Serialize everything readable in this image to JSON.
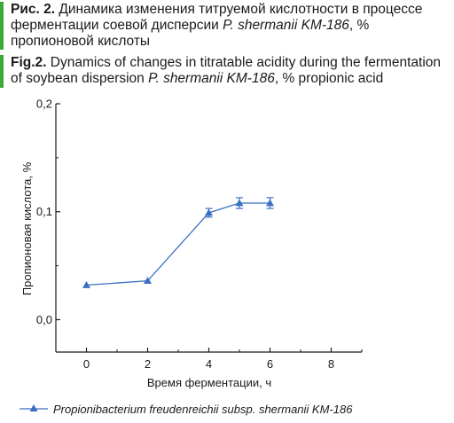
{
  "caption": {
    "ru_label": "Рис. 2.",
    "ru_text_1": " Динамика изменения титруемой кислотности в процессе ферментации соевой дисперсии ",
    "ru_strain": "P. shermanii KM-186",
    "ru_text_2": ", % пропионовой кислоты",
    "en_label": "Fig.2.",
    "en_text_1": " Dynamics of changes in titratable acidity during the fermentation of soybean dispersion ",
    "en_strain": "P. shermanii KM-186",
    "en_text_2": ", % propionic acid"
  },
  "colors": {
    "accent_bar": "#3aa935",
    "series": "#3b6fc4",
    "axis": "#1a1a1a"
  },
  "chart_data": {
    "type": "line",
    "xlabel": "Время ферментации, ч",
    "ylabel": "Пропионовая кислота, %",
    "xlim": [
      -1,
      9
    ],
    "ylim": [
      -0.03,
      0.2
    ],
    "x_ticks": [
      0,
      2,
      4,
      6,
      8
    ],
    "x_tick_labels": [
      "0",
      "2",
      "4",
      "6",
      "8"
    ],
    "y_ticks": [
      0.0,
      0.1,
      0.2
    ],
    "y_tick_labels": [
      "0,0",
      "0,1",
      "0,2"
    ],
    "grid": false,
    "legend_position": "bottom",
    "marker": "triangle-up",
    "series": [
      {
        "name": "Propionibacterium freudenreichii subsp. shermanii KM-186",
        "x": [
          0,
          2,
          4,
          5,
          6
        ],
        "y": [
          0.032,
          0.036,
          0.099,
          0.108,
          0.108
        ],
        "error": [
          0,
          0,
          0.004,
          0.005,
          0.005
        ]
      }
    ]
  }
}
